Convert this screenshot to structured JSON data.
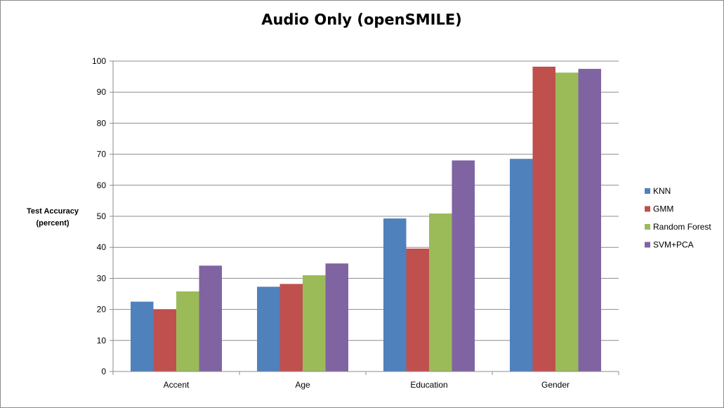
{
  "chart_data": {
    "type": "bar",
    "title": "Audio Only (openSMILE)",
    "ylabel_lines": [
      "Test Accuracy",
      "(percent)"
    ],
    "xlabel": "",
    "ylim": [
      0,
      100
    ],
    "yticks": [
      0,
      10,
      20,
      30,
      40,
      50,
      60,
      70,
      80,
      90,
      100
    ],
    "grid": true,
    "legend_position": "right",
    "categories": [
      "Accent",
      "Age",
      "Education",
      "Gender"
    ],
    "series": [
      {
        "name": "KNN",
        "color": "#4f81bd",
        "values": [
          22.5,
          27.3,
          49.3,
          68.5
        ]
      },
      {
        "name": "GMM",
        "color": "#c0504d",
        "values": [
          20.0,
          28.2,
          39.6,
          98.2
        ]
      },
      {
        "name": "Random Forest",
        "color": "#9bbb59",
        "values": [
          25.8,
          31.0,
          50.9,
          96.3
        ]
      },
      {
        "name": "SVM+PCA",
        "color": "#8064a2",
        "values": [
          34.1,
          34.8,
          68.0,
          97.5
        ]
      }
    ]
  }
}
